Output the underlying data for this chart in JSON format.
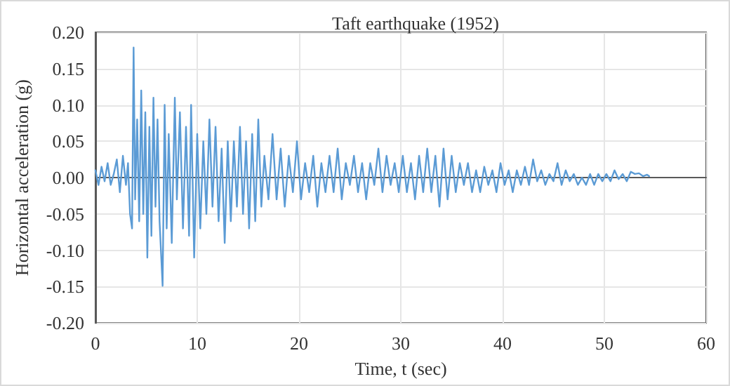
{
  "chart_data": {
    "type": "line",
    "title": "Taft earthquake (1952)",
    "xlabel": "Time, t (sec)",
    "ylabel": "Horizontal acceleration (g)",
    "xlim": [
      0,
      60
    ],
    "xticks": [
      0,
      10,
      20,
      30,
      40,
      50,
      60
    ],
    "ylim": [
      -0.2,
      0.2
    ],
    "yticks": [
      {
        "value": -0.2,
        "label": "-0.20"
      },
      {
        "value": -0.15,
        "label": "-0.15"
      },
      {
        "value": -0.1,
        "label": "-0.10"
      },
      {
        "value": -0.05,
        "label": "-0.05"
      },
      {
        "value": 0,
        "label": "0.00"
      },
      {
        "value": 0.05,
        "label": "0.05"
      },
      {
        "value": 0.1,
        "label": "0.10"
      },
      {
        "value": 0.15,
        "label": "0.15"
      },
      {
        "value": 0.2,
        "label": "0.20"
      }
    ],
    "grid": true,
    "marker": "none",
    "line_style": "solid",
    "series": [
      {
        "color": "#5b9bd5",
        "x": [
          0,
          0.3,
          0.6,
          0.9,
          1.2,
          1.5,
          1.8,
          2.1,
          2.4,
          2.7,
          3.0,
          3.2,
          3.4,
          3.6,
          3.75,
          3.9,
          4.1,
          4.3,
          4.5,
          4.7,
          4.9,
          5.1,
          5.3,
          5.5,
          5.7,
          5.9,
          6.1,
          6.3,
          6.6,
          6.8,
          7.0,
          7.2,
          7.5,
          7.8,
          8.0,
          8.3,
          8.6,
          8.9,
          9.2,
          9.4,
          9.7,
          10,
          10.3,
          10.6,
          10.9,
          11.2,
          11.5,
          11.8,
          12.1,
          12.4,
          12.7,
          13,
          13.3,
          13.6,
          13.9,
          14.2,
          14.5,
          14.8,
          15.1,
          15.4,
          15.7,
          16,
          16.3,
          16.6,
          17,
          17.4,
          17.8,
          18.2,
          18.6,
          19,
          19.4,
          19.8,
          20.2,
          20.6,
          21,
          21.4,
          21.8,
          22.2,
          22.6,
          23,
          23.4,
          23.8,
          24.2,
          24.6,
          25,
          25.4,
          25.8,
          26.2,
          26.6,
          27,
          27.4,
          27.8,
          28.2,
          28.6,
          29,
          29.4,
          29.8,
          30.2,
          30.6,
          31,
          31.4,
          31.8,
          32.2,
          32.6,
          33,
          33.4,
          33.8,
          34.2,
          34.6,
          35,
          35.4,
          35.8,
          36.2,
          36.6,
          37,
          37.4,
          37.8,
          38.2,
          38.6,
          39,
          39.4,
          39.8,
          40.2,
          40.6,
          41,
          41.4,
          41.8,
          42.2,
          42.6,
          43,
          43.4,
          43.8,
          44.2,
          44.6,
          45,
          45.4,
          45.8,
          46.2,
          46.6,
          47,
          47.4,
          47.8,
          48.2,
          48.6,
          49,
          49.4,
          49.8,
          50.2,
          50.6,
          51,
          51.4,
          51.8,
          52.2,
          52.6,
          53,
          53.4,
          53.8,
          54.2,
          54.4
        ],
        "values": [
          0.01,
          -0.01,
          0.015,
          -0.005,
          0.02,
          -0.01,
          0.005,
          0.025,
          -0.02,
          0.03,
          -0.01,
          0.02,
          -0.05,
          -0.07,
          0.179,
          -0.03,
          0.08,
          -0.06,
          0.12,
          -0.05,
          0.09,
          -0.11,
          0.07,
          -0.08,
          0.11,
          -0.04,
          0.08,
          -0.06,
          -0.149,
          0.1,
          -0.07,
          0.06,
          -0.09,
          0.11,
          -0.03,
          0.09,
          -0.07,
          0.07,
          -0.08,
          0.1,
          -0.11,
          0.06,
          -0.07,
          0.05,
          -0.05,
          0.08,
          -0.04,
          0.07,
          -0.06,
          0.04,
          -0.09,
          0.05,
          -0.06,
          0.05,
          -0.04,
          0.07,
          -0.05,
          0.05,
          -0.07,
          0.06,
          -0.06,
          0.08,
          -0.04,
          0.03,
          -0.03,
          0.06,
          -0.03,
          0.04,
          -0.04,
          0.03,
          -0.02,
          0.05,
          -0.03,
          0.02,
          -0.02,
          0.03,
          -0.04,
          0.02,
          -0.02,
          0.03,
          -0.02,
          0.04,
          -0.03,
          0.02,
          -0.01,
          0.03,
          -0.02,
          0.02,
          -0.03,
          0.02,
          -0.01,
          0.04,
          -0.02,
          0.03,
          -0.01,
          0.02,
          -0.02,
          0.03,
          -0.02,
          0.02,
          -0.03,
          0.03,
          -0.02,
          0.04,
          -0.02,
          0.03,
          -0.04,
          0.04,
          -0.03,
          0.03,
          -0.02,
          0.02,
          -0.01,
          0.02,
          -0.02,
          0.01,
          -0.02,
          0.015,
          -0.01,
          0.01,
          -0.02,
          0.02,
          -0.01,
          0.01,
          -0.02,
          0.01,
          -0.01,
          0.015,
          -0.01,
          0.025,
          -0.005,
          0.01,
          -0.01,
          0.005,
          -0.005,
          0.02,
          -0.01,
          0.01,
          -0.005,
          0.005,
          -0.01,
          0,
          -0.01,
          0.005,
          -0.01,
          0.005,
          -0.005,
          0.005,
          -0.005,
          0.01,
          -0.002,
          0.005,
          -0.005,
          0.008,
          0.005,
          0.006,
          0.002,
          0.004,
          0.002
        ]
      }
    ]
  }
}
